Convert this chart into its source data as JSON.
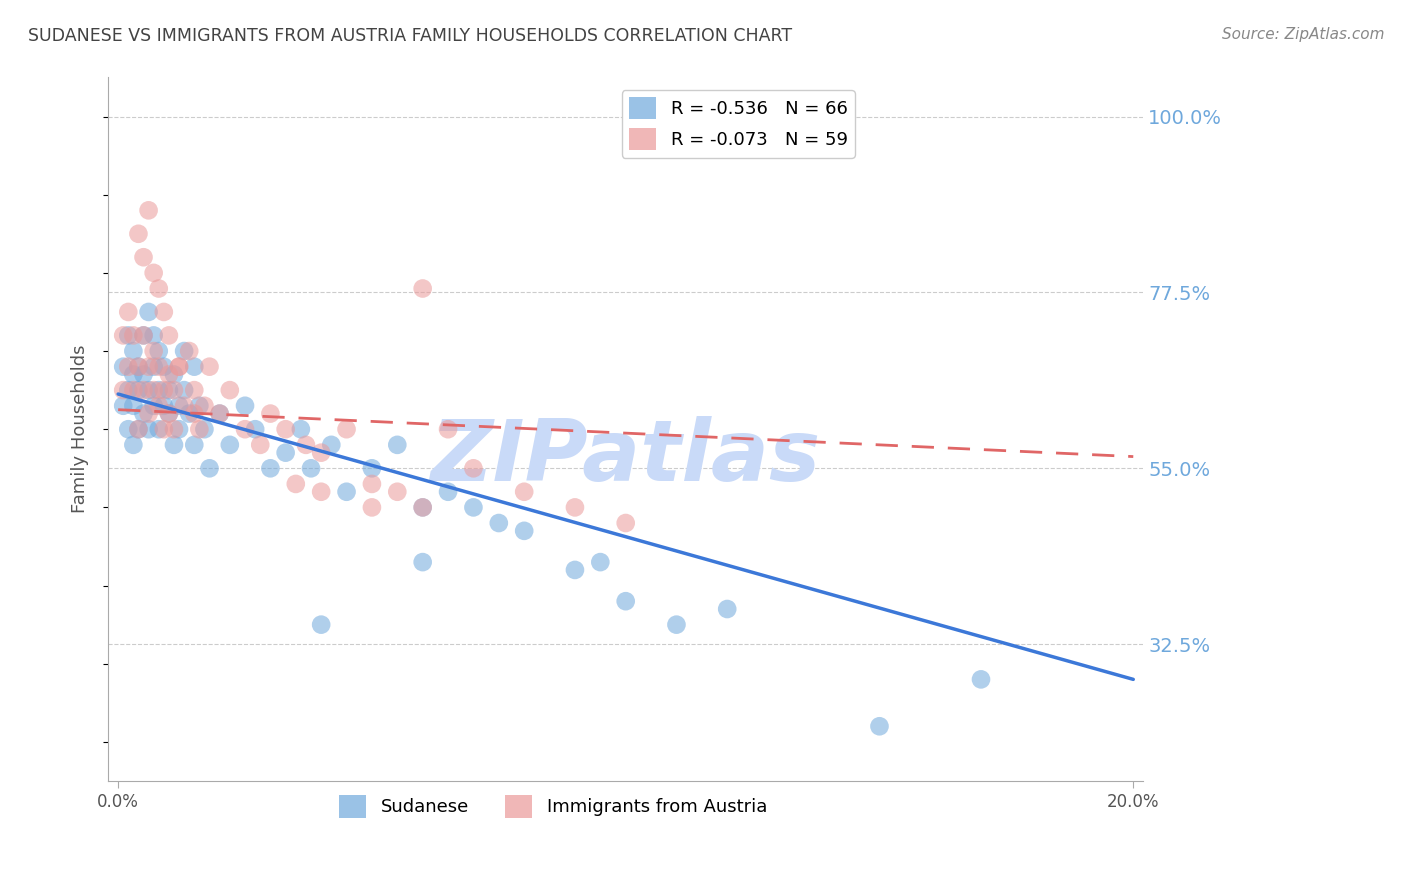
{
  "title": "SUDANESE VS IMMIGRANTS FROM AUSTRIA FAMILY HOUSEHOLDS CORRELATION CHART",
  "source": "Source: ZipAtlas.com",
  "ylabel": "Family Households",
  "ytick_labels": [
    "100.0%",
    "77.5%",
    "55.0%",
    "32.5%"
  ],
  "ytick_values": [
    1.0,
    0.775,
    0.55,
    0.325
  ],
  "ymin": 0.15,
  "ymax": 1.05,
  "xmin": -0.002,
  "xmax": 0.202,
  "legend_blue_r": "R = -0.536",
  "legend_blue_n": "N = 66",
  "legend_pink_r": "R = -0.073",
  "legend_pink_n": "N = 59",
  "blue_color": "#6fa8dc",
  "pink_color": "#ea9999",
  "blue_line_color": "#3c78d8",
  "pink_line_color": "#e06666",
  "grid_color": "#cccccc",
  "axis_color": "#aaaaaa",
  "title_color": "#434343",
  "right_label_color": "#6fa8dc",
  "watermark_color": "#c9daf8",
  "blue_line_x0": 0.0,
  "blue_line_y0": 0.645,
  "blue_line_x1": 0.2,
  "blue_line_y1": 0.28,
  "pink_line_x0": 0.0,
  "pink_line_y0": 0.625,
  "pink_line_x1": 0.2,
  "pink_line_y1": 0.565,
  "blue_scatter_x": [
    0.001,
    0.001,
    0.002,
    0.002,
    0.002,
    0.003,
    0.003,
    0.003,
    0.003,
    0.004,
    0.004,
    0.004,
    0.005,
    0.005,
    0.005,
    0.006,
    0.006,
    0.006,
    0.007,
    0.007,
    0.007,
    0.008,
    0.008,
    0.008,
    0.009,
    0.009,
    0.01,
    0.01,
    0.011,
    0.011,
    0.012,
    0.012,
    0.013,
    0.013,
    0.014,
    0.015,
    0.015,
    0.016,
    0.017,
    0.018,
    0.02,
    0.022,
    0.025,
    0.027,
    0.03,
    0.033,
    0.036,
    0.038,
    0.042,
    0.045,
    0.05,
    0.055,
    0.06,
    0.065,
    0.07,
    0.075,
    0.08,
    0.09,
    0.095,
    0.1,
    0.11,
    0.12,
    0.15,
    0.17,
    0.06,
    0.04
  ],
  "blue_scatter_y": [
    0.63,
    0.68,
    0.65,
    0.6,
    0.72,
    0.67,
    0.63,
    0.7,
    0.58,
    0.65,
    0.6,
    0.68,
    0.62,
    0.67,
    0.72,
    0.65,
    0.6,
    0.75,
    0.63,
    0.68,
    0.72,
    0.65,
    0.6,
    0.7,
    0.63,
    0.68,
    0.62,
    0.65,
    0.58,
    0.67,
    0.63,
    0.6,
    0.7,
    0.65,
    0.62,
    0.68,
    0.58,
    0.63,
    0.6,
    0.55,
    0.62,
    0.58,
    0.63,
    0.6,
    0.55,
    0.57,
    0.6,
    0.55,
    0.58,
    0.52,
    0.55,
    0.58,
    0.5,
    0.52,
    0.5,
    0.48,
    0.47,
    0.42,
    0.43,
    0.38,
    0.35,
    0.37,
    0.22,
    0.28,
    0.43,
    0.35
  ],
  "pink_scatter_x": [
    0.001,
    0.001,
    0.002,
    0.002,
    0.003,
    0.003,
    0.004,
    0.004,
    0.005,
    0.005,
    0.006,
    0.006,
    0.007,
    0.007,
    0.008,
    0.008,
    0.009,
    0.009,
    0.01,
    0.01,
    0.011,
    0.011,
    0.012,
    0.013,
    0.014,
    0.015,
    0.016,
    0.017,
    0.018,
    0.02,
    0.022,
    0.025,
    0.028,
    0.03,
    0.033,
    0.037,
    0.04,
    0.045,
    0.05,
    0.055,
    0.06,
    0.065,
    0.07,
    0.08,
    0.09,
    0.1,
    0.004,
    0.005,
    0.006,
    0.007,
    0.008,
    0.009,
    0.01,
    0.012,
    0.015,
    0.06,
    0.035,
    0.04,
    0.05
  ],
  "pink_scatter_y": [
    0.65,
    0.72,
    0.68,
    0.75,
    0.65,
    0.72,
    0.68,
    0.6,
    0.65,
    0.72,
    0.68,
    0.62,
    0.65,
    0.7,
    0.63,
    0.68,
    0.65,
    0.6,
    0.62,
    0.67,
    0.65,
    0.6,
    0.68,
    0.63,
    0.7,
    0.65,
    0.6,
    0.63,
    0.68,
    0.62,
    0.65,
    0.6,
    0.58,
    0.62,
    0.6,
    0.58,
    0.57,
    0.6,
    0.53,
    0.52,
    0.78,
    0.6,
    0.55,
    0.52,
    0.5,
    0.48,
    0.85,
    0.82,
    0.88,
    0.8,
    0.78,
    0.75,
    0.72,
    0.68,
    0.62,
    0.5,
    0.53,
    0.52,
    0.5
  ]
}
